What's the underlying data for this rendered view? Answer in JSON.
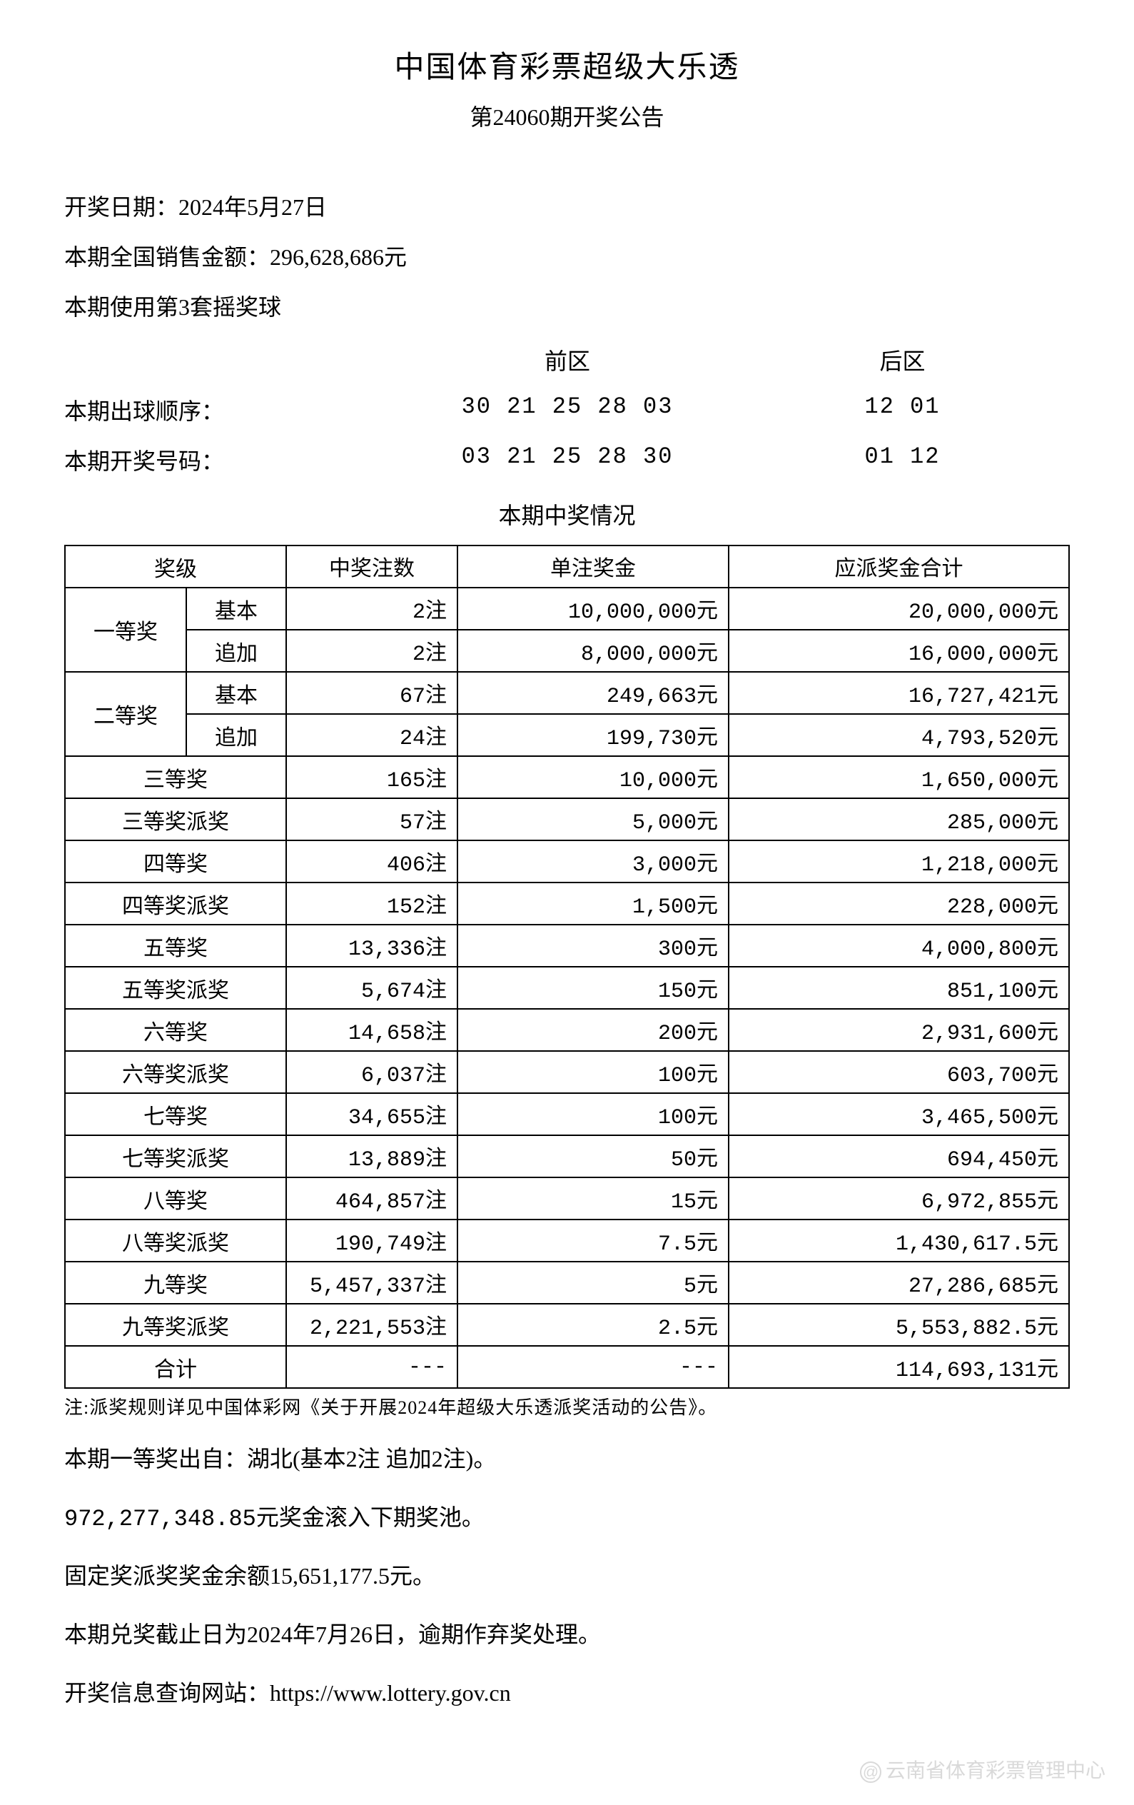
{
  "header": {
    "title": "中国体育彩票超级大乐透",
    "subtitle": "第24060期开奖公告"
  },
  "info": {
    "draw_date": "开奖日期：2024年5月27日",
    "sales": "本期全国销售金额：296,628,686元",
    "ball_set": "本期使用第3套摇奖球"
  },
  "numbers": {
    "front_label": "前区",
    "back_label": "后区",
    "draw_order_label": "本期出球顺序：",
    "draw_order_front": "30 21 25 28 03",
    "draw_order_back": "12 01",
    "winning_label": "本期开奖号码：",
    "winning_front": "03 21 25 28 30",
    "winning_back": "01 12"
  },
  "table": {
    "title": "本期中奖情况",
    "headers": {
      "level": "奖级",
      "count": "中奖注数",
      "single": "单注奖金",
      "total": "应派奖金合计"
    },
    "tier1": {
      "name": "一等奖",
      "basic_label": "基本",
      "addon_label": "追加",
      "basic": {
        "count": "2注",
        "single": "10,000,000元",
        "total": "20,000,000元"
      },
      "addon": {
        "count": "2注",
        "single": "8,000,000元",
        "total": "16,000,000元"
      }
    },
    "tier2": {
      "name": "二等奖",
      "basic_label": "基本",
      "addon_label": "追加",
      "basic": {
        "count": "67注",
        "single": "249,663元",
        "total": "16,727,421元"
      },
      "addon": {
        "count": "24注",
        "single": "199,730元",
        "total": "4,793,520元"
      }
    },
    "rows": [
      {
        "name": "三等奖",
        "count": "165注",
        "single": "10,000元",
        "total": "1,650,000元"
      },
      {
        "name": "三等奖派奖",
        "count": "57注",
        "single": "5,000元",
        "total": "285,000元"
      },
      {
        "name": "四等奖",
        "count": "406注",
        "single": "3,000元",
        "total": "1,218,000元"
      },
      {
        "name": "四等奖派奖",
        "count": "152注",
        "single": "1,500元",
        "total": "228,000元"
      },
      {
        "name": "五等奖",
        "count": "13,336注",
        "single": "300元",
        "total": "4,000,800元"
      },
      {
        "name": "五等奖派奖",
        "count": "5,674注",
        "single": "150元",
        "total": "851,100元"
      },
      {
        "name": "六等奖",
        "count": "14,658注",
        "single": "200元",
        "total": "2,931,600元"
      },
      {
        "name": "六等奖派奖",
        "count": "6,037注",
        "single": "100元",
        "total": "603,700元"
      },
      {
        "name": "七等奖",
        "count": "34,655注",
        "single": "100元",
        "total": "3,465,500元"
      },
      {
        "name": "七等奖派奖",
        "count": "13,889注",
        "single": "50元",
        "total": "694,450元"
      },
      {
        "name": "八等奖",
        "count": "464,857注",
        "single": "15元",
        "total": "6,972,855元"
      },
      {
        "name": "八等奖派奖",
        "count": "190,749注",
        "single": "7.5元",
        "total": "1,430,617.5元"
      },
      {
        "name": "九等奖",
        "count": "5,457,337注",
        "single": "5元",
        "total": "27,286,685元"
      },
      {
        "name": "九等奖派奖",
        "count": "2,221,553注",
        "single": "2.5元",
        "total": "5,553,882.5元"
      }
    ],
    "sum": {
      "name": "合计",
      "count": "---",
      "single": "---",
      "total": "114,693,131元"
    }
  },
  "note": "注:派奖规则详见中国体彩网《关于开展2024年超级大乐透派奖活动的公告》。",
  "footer": {
    "line1": "本期一等奖出自：湖北(基本2注 追加2注)。",
    "line2": "972,277,348.85元奖金滚入下期奖池。",
    "line3": "固定奖派奖奖金余额15,651,177.5元。",
    "line4": "本期兑奖截止日为2024年7月26日，逾期作弃奖处理。",
    "line5": "开奖信息查询网站：https://www.lottery.gov.cn"
  },
  "watermark": "云南省体育彩票管理中心"
}
